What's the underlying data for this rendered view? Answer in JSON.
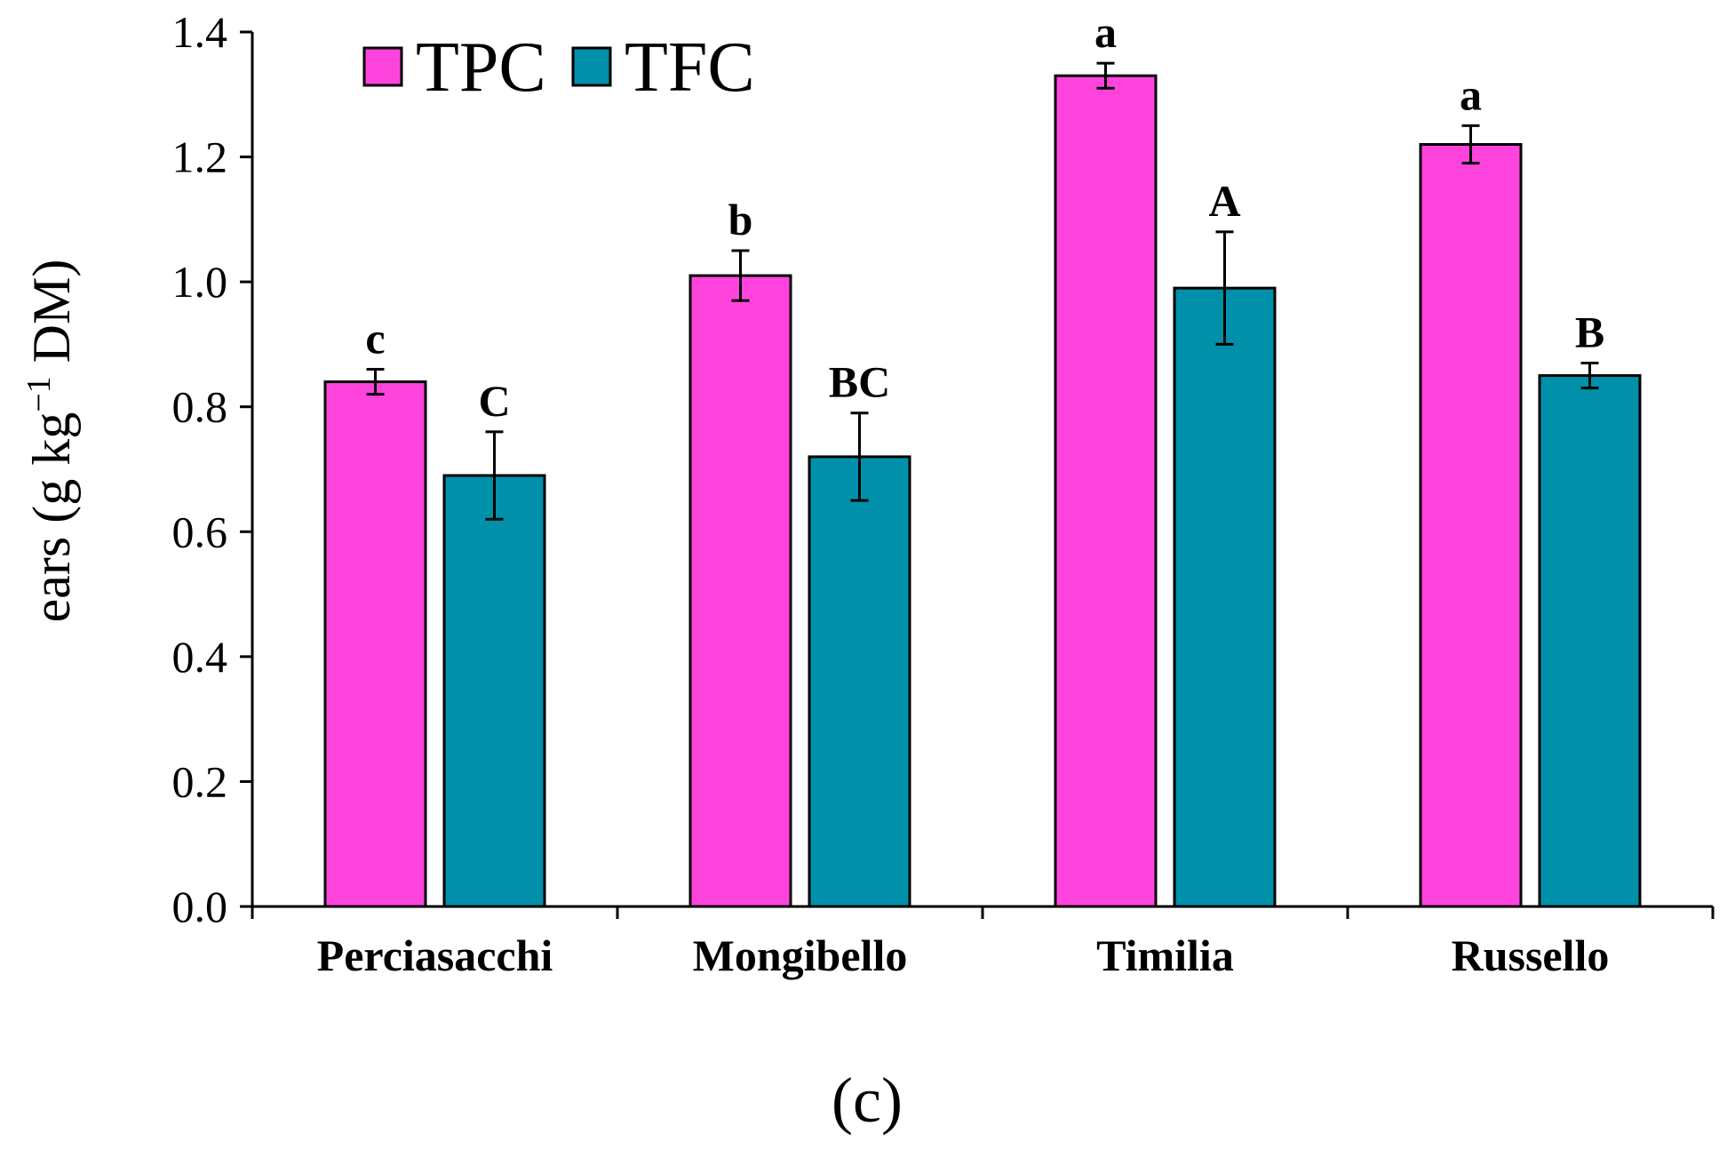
{
  "chart_data": {
    "type": "bar",
    "categories": [
      "Perciasacchi",
      "Mongibello",
      "Timilia",
      "Russello"
    ],
    "series": [
      {
        "name": "TPC",
        "color": "#ff44dd",
        "values": [
          0.84,
          1.01,
          1.33,
          1.22
        ],
        "errors": [
          0.02,
          0.04,
          0.02,
          0.03
        ],
        "significance": [
          "c",
          "b",
          "a",
          "a"
        ]
      },
      {
        "name": "TFC",
        "color": "#0090aa",
        "values": [
          0.69,
          0.72,
          0.99,
          0.85
        ],
        "errors": [
          0.07,
          0.07,
          0.09,
          0.02
        ],
        "significance": [
          "C",
          "BC",
          "A",
          "B"
        ]
      }
    ],
    "ylim": [
      0,
      1.4
    ],
    "yticks": [
      "0.0",
      "0.2",
      "0.4",
      "0.6",
      "0.8",
      "1.0",
      "1.2",
      "1.4"
    ],
    "ylabel_main": "ears (g kg",
    "ylabel_sup": "−1",
    "ylabel_tail": " DM)",
    "xlabel": "",
    "grid": false,
    "legend_position": "top-left",
    "panel_label": "(c)"
  }
}
